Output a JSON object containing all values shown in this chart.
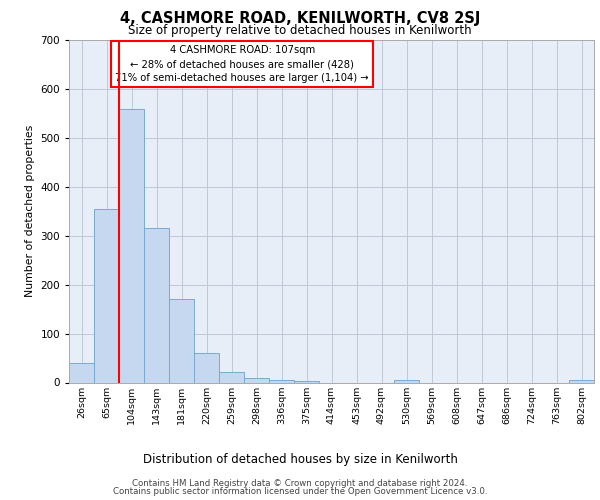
{
  "title": "4, CASHMORE ROAD, KENILWORTH, CV8 2SJ",
  "subtitle": "Size of property relative to detached houses in Kenilworth",
  "xlabel": "Distribution of detached houses by size in Kenilworth",
  "ylabel": "Number of detached properties",
  "bar_labels": [
    "26sqm",
    "65sqm",
    "104sqm",
    "143sqm",
    "181sqm",
    "220sqm",
    "259sqm",
    "298sqm",
    "336sqm",
    "375sqm",
    "414sqm",
    "453sqm",
    "492sqm",
    "530sqm",
    "569sqm",
    "608sqm",
    "647sqm",
    "686sqm",
    "724sqm",
    "763sqm",
    "802sqm"
  ],
  "bar_values": [
    40,
    355,
    560,
    315,
    170,
    60,
    22,
    10,
    6,
    4,
    0,
    0,
    0,
    5,
    0,
    0,
    0,
    0,
    0,
    0,
    5
  ],
  "bar_color": "#c5d8f0",
  "bar_edge_color": "#7aaad0",
  "vline_x_index": 2,
  "vline_color": "red",
  "annotation_text": "4 CASHMORE ROAD: 107sqm\n← 28% of detached houses are smaller (428)\n71% of semi-detached houses are larger (1,104) →",
  "annotation_box_color": "white",
  "annotation_box_edge": "red",
  "ylim": [
    0,
    700
  ],
  "yticks": [
    0,
    100,
    200,
    300,
    400,
    500,
    600,
    700
  ],
  "grid_color": "#c0c8d8",
  "bg_color": "#e8eef8",
  "footer_line1": "Contains HM Land Registry data © Crown copyright and database right 2024.",
  "footer_line2": "Contains public sector information licensed under the Open Government Licence v3.0."
}
